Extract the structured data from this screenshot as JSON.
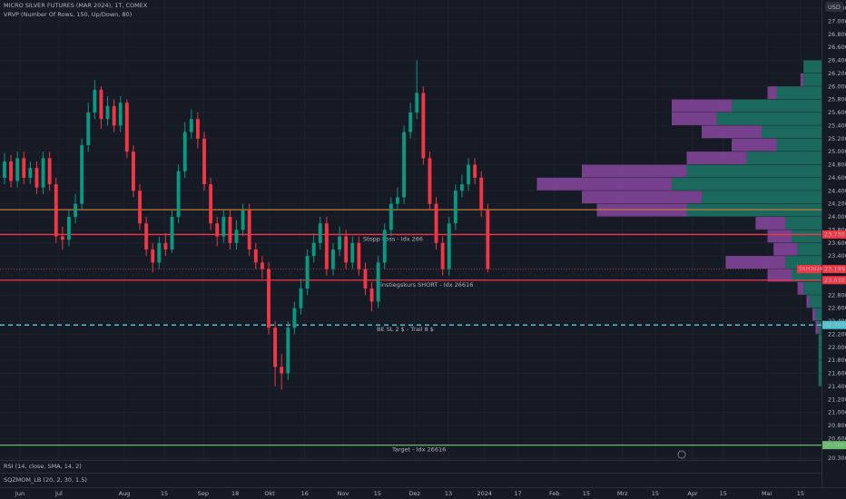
{
  "chart_data": {
    "type": "candlestick",
    "title": "MICRO SILVER FUTURES (MAR 2024), 1T, COMEX",
    "indicator_title": "VRVP (Number Of Rows, 150, Up/Down, 80)",
    "rsi_title": "RSI (14, close, SMA, 14, 2)",
    "momentum_title": "SQZMOM_LB (20, 2, 30, 1.5)",
    "currency": "USD",
    "up_color": "#089981",
    "down_color": "#f23645",
    "x": [
      1.4,
      3.4,
      5.4,
      7.4,
      9.4,
      11.4,
      13.4,
      15.4,
      17.4,
      19.4,
      21.4,
      23.4,
      25.4,
      27.4,
      29.4,
      31.4,
      33.4,
      35.4,
      37.4,
      39.4,
      41.4,
      43.4,
      45.4,
      47.4,
      49.4,
      51.4,
      53.4,
      55.4,
      57.4,
      59.4,
      61.4,
      63.4,
      65.4,
      67.4,
      69.4,
      71.4,
      73.4,
      75.4,
      77.4,
      79.4,
      81.4,
      83.4,
      85.4,
      87.4,
      89.4,
      91.4,
      93.4,
      95.4,
      97.4,
      99.4,
      101.4,
      103.4,
      105.4,
      107.4,
      109.4,
      111.4,
      113.4,
      115.4,
      117.4,
      119.4,
      121.4,
      123.4,
      125.4,
      127.4,
      129.4,
      131.4,
      133.4,
      135.4,
      137.4,
      139.4,
      141.4,
      143.4,
      145.4,
      147.4,
      149.4,
      151.4
    ],
    "open": [
      24.6,
      24.85,
      24.55,
      24.9,
      24.6,
      24.75,
      24.45,
      24.9,
      24.5,
      23.7,
      23.65,
      24.0,
      24.2,
      25.1,
      25.6,
      25.95,
      25.5,
      25.7,
      25.4,
      25.75,
      25.0,
      24.4,
      23.9,
      23.5,
      23.3,
      23.6,
      23.5,
      24.0,
      24.7,
      25.3,
      25.5,
      25.2,
      24.5,
      23.9,
      23.7,
      24.0,
      23.6,
      23.8,
      24.1,
      23.5,
      23.3,
      23.2,
      22.3,
      21.7,
      21.6,
      22.3,
      22.6,
      22.9,
      23.4,
      23.6,
      23.9,
      23.2,
      23.5,
      23.7,
      23.3,
      23.6,
      23.2,
      22.9,
      22.7,
      23.3,
      23.8,
      24.2,
      24.3,
      25.3,
      25.6,
      25.9,
      24.9,
      24.2,
      23.6,
      23.2,
      23.9,
      24.4,
      24.5,
      24.8,
      24.6,
      24.1
    ],
    "high": [
      24.98,
      24.95,
      25.0,
      25.0,
      24.85,
      24.85,
      25.0,
      25.0,
      24.6,
      23.85,
      24.1,
      24.35,
      25.2,
      25.75,
      26.1,
      26.0,
      25.85,
      25.8,
      25.85,
      25.8,
      25.1,
      24.5,
      24.0,
      23.6,
      23.7,
      23.75,
      24.1,
      24.8,
      25.45,
      25.65,
      25.6,
      25.3,
      24.6,
      24.0,
      24.1,
      24.1,
      23.95,
      24.2,
      24.2,
      23.6,
      23.4,
      23.3,
      22.4,
      21.9,
      22.4,
      22.7,
      23.05,
      23.5,
      23.75,
      24.0,
      24.0,
      23.6,
      23.85,
      23.8,
      23.7,
      23.7,
      23.3,
      23.0,
      23.4,
      23.9,
      24.3,
      24.45,
      25.4,
      25.75,
      26.4,
      26.0,
      25.0,
      24.3,
      23.7,
      24.0,
      24.5,
      24.65,
      24.9,
      24.9,
      24.7,
      24.2
    ],
    "low": [
      24.5,
      24.45,
      24.45,
      24.5,
      24.5,
      24.35,
      24.35,
      24.4,
      23.6,
      23.5,
      23.55,
      23.9,
      24.1,
      25.0,
      25.5,
      25.35,
      25.4,
      25.3,
      25.3,
      24.9,
      24.3,
      23.8,
      23.4,
      23.15,
      23.2,
      23.4,
      23.45,
      23.9,
      24.6,
      25.2,
      25.05,
      24.4,
      23.8,
      23.55,
      23.6,
      23.5,
      23.5,
      23.7,
      23.4,
      23.2,
      23.05,
      22.2,
      21.4,
      21.35,
      21.5,
      22.2,
      22.5,
      22.8,
      23.3,
      23.5,
      23.1,
      23.1,
      23.4,
      23.2,
      23.2,
      23.1,
      22.8,
      22.55,
      22.6,
      23.2,
      23.7,
      24.1,
      24.2,
      25.2,
      25.5,
      24.8,
      24.1,
      23.5,
      23.1,
      23.1,
      23.8,
      24.3,
      24.4,
      24.5,
      24.0,
      23.15
    ],
    "close": [
      24.85,
      24.55,
      24.9,
      24.6,
      24.75,
      24.45,
      24.9,
      24.5,
      23.7,
      23.65,
      24.0,
      24.2,
      25.1,
      25.6,
      25.95,
      25.5,
      25.7,
      25.4,
      25.75,
      25.0,
      24.4,
      23.9,
      23.5,
      23.3,
      23.6,
      23.5,
      24.0,
      24.7,
      25.3,
      25.5,
      25.2,
      24.5,
      23.9,
      23.7,
      24.0,
      23.6,
      23.8,
      24.1,
      23.5,
      23.3,
      23.2,
      22.3,
      21.7,
      21.6,
      22.3,
      22.6,
      22.9,
      23.4,
      23.6,
      23.9,
      23.2,
      23.5,
      23.7,
      23.3,
      23.6,
      23.2,
      22.9,
      22.7,
      23.3,
      23.8,
      24.2,
      24.3,
      25.3,
      25.6,
      25.9,
      24.9,
      24.2,
      23.6,
      23.2,
      23.9,
      24.4,
      24.5,
      24.8,
      24.6,
      24.1,
      23.2
    ],
    "xlim": [
      0,
      255
    ],
    "xticks": [
      {
        "value": 6.2,
        "label": "Jun"
      },
      {
        "value": 18.3,
        "label": "Jul"
      },
      {
        "value": 38.6,
        "label": "Aug"
      },
      {
        "value": 51,
        "label": "15"
      },
      {
        "value": 63.1,
        "label": "Sep"
      },
      {
        "value": 73,
        "label": "18"
      },
      {
        "value": 83.7,
        "label": "Okt"
      },
      {
        "value": 94.6,
        "label": "16"
      },
      {
        "value": 106.5,
        "label": "Nov"
      },
      {
        "value": 117.2,
        "label": "15"
      },
      {
        "value": 128.7,
        "label": "Dez"
      },
      {
        "value": 139.2,
        "label": "13"
      },
      {
        "value": 150.4,
        "label": "2024"
      },
      {
        "value": 160.8,
        "label": "17"
      },
      {
        "value": 172.1,
        "label": "Feb"
      },
      {
        "value": 182,
        "label": "15"
      },
      {
        "value": 193.2,
        "label": "Mrz"
      },
      {
        "value": 203.4,
        "label": "15"
      },
      {
        "value": 215,
        "label": "Apr"
      },
      {
        "value": 224.5,
        "label": "15"
      },
      {
        "value": 238,
        "label": "Mai"
      },
      {
        "value": 248.5,
        "label": "15"
      }
    ],
    "ylim": [
      20.3,
      27.2
    ],
    "yticks": [
      {
        "value": 27.2,
        "label": "27.200"
      },
      {
        "value": 27.0,
        "label": "27.000"
      },
      {
        "value": 26.8,
        "label": "26.800"
      },
      {
        "value": 26.6,
        "label": "26.600"
      },
      {
        "value": 26.4,
        "label": "26.400"
      },
      {
        "value": 26.2,
        "label": "26.200"
      },
      {
        "value": 26.0,
        "label": "26.000"
      },
      {
        "value": 25.8,
        "label": "25.800"
      },
      {
        "value": 25.6,
        "label": "25.600"
      },
      {
        "value": 25.4,
        "label": "25.400"
      },
      {
        "value": 25.2,
        "label": "25.200"
      },
      {
        "value": 25.0,
        "label": "25.000"
      },
      {
        "value": 24.8,
        "label": "24.800"
      },
      {
        "value": 24.6,
        "label": "24.600"
      },
      {
        "value": 24.4,
        "label": "24.400"
      },
      {
        "value": 24.2,
        "label": "24.200"
      },
      {
        "value": 24.0,
        "label": "24.000"
      },
      {
        "value": 23.8,
        "label": "23.800"
      },
      {
        "value": 23.6,
        "label": "23.600"
      },
      {
        "value": 23.4,
        "label": "23.400"
      },
      {
        "value": 23.2,
        "label": "23.200"
      },
      {
        "value": 23.0,
        "label": "23.000"
      },
      {
        "value": 22.8,
        "label": "22.800"
      },
      {
        "value": 22.6,
        "label": "22.600"
      },
      {
        "value": 22.4,
        "label": "22.400"
      },
      {
        "value": 22.2,
        "label": "22.200"
      },
      {
        "value": 22.0,
        "label": "22.000"
      },
      {
        "value": 21.8,
        "label": "21.800"
      },
      {
        "value": 21.6,
        "label": "21.600"
      },
      {
        "value": 21.4,
        "label": "21.400"
      },
      {
        "value": 21.2,
        "label": "21.200"
      },
      {
        "value": 21.0,
        "label": "21.000"
      },
      {
        "value": 20.8,
        "label": "20.800"
      },
      {
        "value": 20.6,
        "label": "20.600"
      },
      {
        "value": 20.3,
        "label": "20.300"
      }
    ],
    "levels": [
      {
        "value": 24.11,
        "color": "#c47a3a"
      },
      {
        "value": 23.73,
        "label": "23.730",
        "color": "#f23645",
        "text": "Stopp Loss - Idx 266"
      },
      {
        "value": 23.03,
        "label": "23.030",
        "color": "#f23645",
        "text": "Einstiegskurs SHORT - Idx 26616"
      },
      {
        "value": 22.342,
        "label": "22.342",
        "color": "#4fc3cf",
        "dashed": true,
        "text": "BE SL 2 $ - Trail 8 $"
      },
      {
        "value": 20.5,
        "label": "20.500",
        "color": "#66bb6a",
        "text": "Target - Idx 26616"
      }
    ],
    "last_price": {
      "value": 23.199,
      "label": "23.199",
      "symbol": "SILH2024",
      "color": "#f23645"
    },
    "volume_profile": {
      "up_color": "#1b7d6a",
      "down_color": "#8e4aa6",
      "xlim": [
        0,
        100
      ],
      "row": 0.2,
      "prices": [
        26.2,
        26.0,
        25.8,
        25.6,
        25.4,
        25.2,
        25.0,
        24.8,
        24.6,
        24.4,
        24.2,
        24.0,
        23.8,
        23.6,
        23.4,
        23.2,
        23.0,
        22.8,
        22.6,
        22.4,
        22.2,
        22.0,
        21.8,
        21.6,
        21.4
      ],
      "up": [
        6,
        6,
        15,
        30,
        35,
        20,
        15,
        25,
        45,
        50,
        40,
        45,
        12,
        10,
        8,
        12,
        10,
        6,
        4,
        2,
        1,
        1,
        1,
        1,
        1
      ],
      "down": [
        0,
        1,
        3,
        20,
        15,
        20,
        15,
        20,
        35,
        45,
        40,
        30,
        10,
        8,
        8,
        20,
        8,
        2,
        1,
        1,
        1,
        0,
        0,
        0,
        0
      ]
    }
  }
}
